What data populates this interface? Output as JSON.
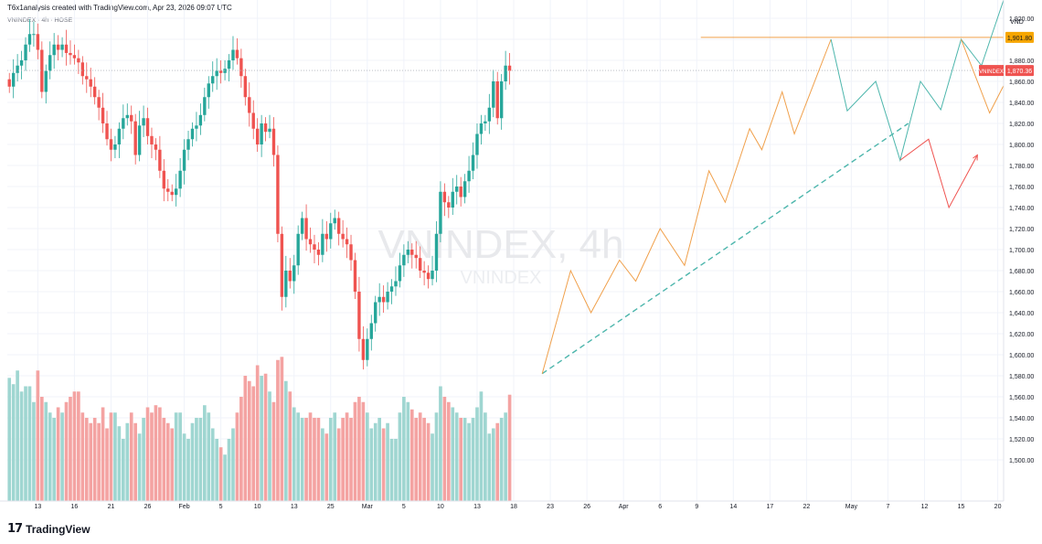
{
  "header": {
    "attribution": "T6x1analysis created with TradingView.com, Apr 23, 2026 09:07 UTC",
    "symbol_line": "VNINDEX · 4h · HOSE"
  },
  "watermark": {
    "main": "VNINDEX, 4h",
    "sub": "VNINDEX"
  },
  "footer": {
    "logo_mark": "17",
    "brand": "TradingView"
  },
  "colors": {
    "up": "#26a69a",
    "down": "#ef5350",
    "vol_up": "#9fd6d1",
    "vol_down": "#f4a3a2",
    "resistance": "#f0a04b",
    "scenario_teal": "#4db6ac",
    "scenario_orange": "#f0a04b",
    "scenario_red": "#ef5350",
    "price_tag": "#ef5350",
    "level_tag": "#f7a600"
  },
  "chart_data": {
    "type": "candlestick",
    "timeframe": "4h",
    "currency_label": "VND",
    "ylim": [
      1480,
      1940
    ],
    "y_ticks": [
      1500,
      1520,
      1540,
      1560,
      1580,
      1600,
      1620,
      1640,
      1660,
      1680,
      1700,
      1720,
      1740,
      1760,
      1780,
      1800,
      1820,
      1840,
      1860,
      1880,
      1900,
      1920
    ],
    "x_ticks": [
      {
        "label": "13",
        "index": 7
      },
      {
        "label": "16",
        "index": 16
      },
      {
        "label": "21",
        "index": 25
      },
      {
        "label": "26",
        "index": 34
      },
      {
        "label": "Feb",
        "index": 43
      },
      {
        "label": "5",
        "index": 52
      },
      {
        "label": "10",
        "index": 61
      },
      {
        "label": "13",
        "index": 70
      },
      {
        "label": "25",
        "index": 79
      },
      {
        "label": "Mar",
        "index": 88
      },
      {
        "label": "5",
        "index": 97
      },
      {
        "label": "10",
        "index": 106
      },
      {
        "label": "13",
        "index": 115
      },
      {
        "label": "18",
        "index": 124
      },
      {
        "label": "23",
        "index": 133
      },
      {
        "label": "26",
        "index": 142
      },
      {
        "label": "Apr",
        "index": 151
      },
      {
        "label": "6",
        "index": 160
      },
      {
        "label": "9",
        "index": 169
      },
      {
        "label": "14",
        "index": 178
      },
      {
        "label": "17",
        "index": 187
      },
      {
        "label": "22",
        "index": 196
      },
      {
        "label": "May",
        "index": 207
      },
      {
        "label": "7",
        "index": 216
      },
      {
        "label": "12",
        "index": 225
      },
      {
        "label": "15",
        "index": 234
      },
      {
        "label": "20",
        "index": 243
      }
    ],
    "closes": [
      1855,
      1868,
      1875,
      1880,
      1895,
      1905,
      1905,
      1890,
      1850,
      1870,
      1885,
      1895,
      1890,
      1895,
      1887,
      1885,
      1882,
      1878,
      1865,
      1862,
      1855,
      1845,
      1835,
      1820,
      1805,
      1795,
      1800,
      1815,
      1825,
      1828,
      1822,
      1790,
      1818,
      1825,
      1808,
      1800,
      1795,
      1775,
      1758,
      1755,
      1752,
      1758,
      1775,
      1795,
      1805,
      1815,
      1818,
      1828,
      1845,
      1858,
      1865,
      1870,
      1868,
      1872,
      1880,
      1890,
      1882,
      1865,
      1845,
      1830,
      1815,
      1800,
      1820,
      1812,
      1815,
      1790,
      1715,
      1655,
      1680,
      1670,
      1685,
      1715,
      1730,
      1710,
      1705,
      1700,
      1695,
      1715,
      1710,
      1725,
      1730,
      1715,
      1710,
      1705,
      1690,
      1660,
      1615,
      1595,
      1615,
      1630,
      1650,
      1655,
      1650,
      1660,
      1665,
      1670,
      1685,
      1695,
      1700,
      1695,
      1692,
      1680,
      1678,
      1672,
      1680,
      1715,
      1755,
      1745,
      1740,
      1755,
      1760,
      1750,
      1765,
      1775,
      1790,
      1810,
      1820,
      1822,
      1835,
      1860,
      1825,
      1860,
      1875,
      1870
    ],
    "volume_range": [
      1490,
      1600
    ],
    "volume_label": "Volume (scaled to price axis)",
    "volumes": [
      1578,
      1572,
      1585,
      1565,
      1570,
      1570,
      1555,
      1585,
      1560,
      1555,
      1545,
      1540,
      1550,
      1545,
      1555,
      1560,
      1565,
      1565,
      1545,
      1540,
      1535,
      1540,
      1535,
      1550,
      1530,
      1545,
      1545,
      1532,
      1520,
      1535,
      1545,
      1535,
      1525,
      1540,
      1550,
      1545,
      1552,
      1550,
      1540,
      1535,
      1530,
      1545,
      1545,
      1525,
      1520,
      1535,
      1540,
      1540,
      1552,
      1545,
      1530,
      1520,
      1512,
      1505,
      1520,
      1530,
      1545,
      1560,
      1580,
      1575,
      1570,
      1590,
      1580,
      1582,
      1565,
      1555,
      1595,
      1598,
      1575,
      1565,
      1550,
      1545,
      1540,
      1540,
      1545,
      1540,
      1540,
      1530,
      1525,
      1540,
      1545,
      1530,
      1540,
      1545,
      1540,
      1555,
      1560,
      1555,
      1545,
      1530,
      1535,
      1540,
      1530,
      1535,
      1520,
      1520,
      1545,
      1560,
      1555,
      1548,
      1540,
      1545,
      1540,
      1535,
      1525,
      1545,
      1570,
      1560,
      1555,
      1550,
      1545,
      1540,
      1540,
      1535,
      1540,
      1550,
      1565,
      1545,
      1525,
      1530,
      1535,
      1540,
      1545,
      1562
    ],
    "resistance_level": 1901.8,
    "resistance_label": "1,901.80",
    "last_price": 1870.36,
    "last_price_label": "1,870.36",
    "last_price_tag": "VNINDEX",
    "trendline": {
      "from": {
        "index": 131,
        "price": 1582
      },
      "to": {
        "index": 221,
        "price": 1820
      },
      "style": "dashed"
    },
    "zigzag": [
      {
        "index": 131,
        "price": 1582
      },
      {
        "index": 138,
        "price": 1680
      },
      {
        "index": 143,
        "price": 1640
      },
      {
        "index": 150,
        "price": 1690
      },
      {
        "index": 154,
        "price": 1670
      },
      {
        "index": 160,
        "price": 1720
      },
      {
        "index": 166,
        "price": 1685
      },
      {
        "index": 172,
        "price": 1775
      },
      {
        "index": 176,
        "price": 1745
      },
      {
        "index": 182,
        "price": 1815
      },
      {
        "index": 185,
        "price": 1795
      },
      {
        "index": 190,
        "price": 1850
      },
      {
        "index": 193,
        "price": 1810
      },
      {
        "index": 202,
        "price": 1900
      }
    ],
    "scenarios": [
      {
        "color_key": "scenario_teal",
        "points": [
          {
            "index": 202,
            "price": 1900
          },
          {
            "index": 206,
            "price": 1832
          },
          {
            "index": 213,
            "price": 1860
          },
          {
            "index": 219,
            "price": 1785
          },
          {
            "index": 224,
            "price": 1860
          },
          {
            "index": 229,
            "price": 1833
          },
          {
            "index": 234,
            "price": 1900
          },
          {
            "index": 239,
            "price": 1875
          },
          {
            "index": 247,
            "price": 1945
          }
        ]
      },
      {
        "color_key": "scenario_orange",
        "points": [
          {
            "index": 234,
            "price": 1900
          },
          {
            "index": 241,
            "price": 1830
          },
          {
            "index": 246,
            "price": 1856
          },
          {
            "index": 254,
            "price": 1790
          }
        ]
      },
      {
        "color_key": "scenario_red",
        "points": [
          {
            "index": 219,
            "price": 1785
          },
          {
            "index": 226,
            "price": 1805
          },
          {
            "index": 231,
            "price": 1740
          },
          {
            "index": 238,
            "price": 1790
          }
        ]
      }
    ]
  }
}
